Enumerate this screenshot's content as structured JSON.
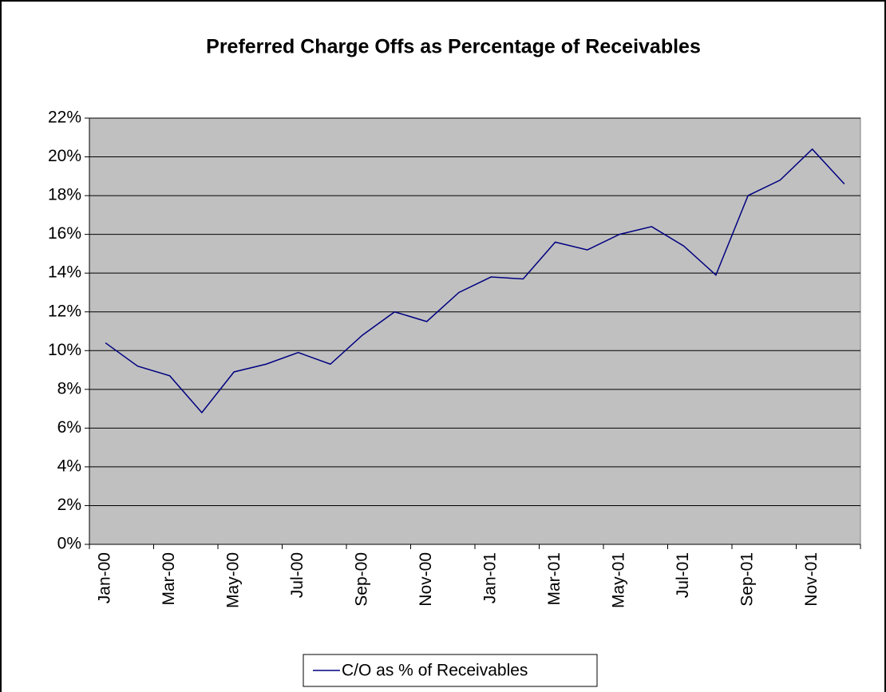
{
  "chart_data": {
    "type": "line",
    "title": "Preferred Charge Offs as Percentage of Receivables",
    "categories": [
      "Jan-00",
      null,
      "Mar-00",
      null,
      "May-00",
      null,
      "Jul-00",
      null,
      "Sep-00",
      null,
      "Nov-00",
      null,
      "Jan-01",
      null,
      "Mar-01",
      null,
      "May-01",
      null,
      "Jul-01",
      null,
      "Sep-01",
      null,
      "Nov-01",
      null
    ],
    "series": [
      {
        "name": "C/O as % of Receivables",
        "color": "#000080",
        "values": [
          10.4,
          9.2,
          8.7,
          6.8,
          8.9,
          9.3,
          9.9,
          9.3,
          10.8,
          12.0,
          11.5,
          13.0,
          13.8,
          13.7,
          15.6,
          15.2,
          16.0,
          16.4,
          15.4,
          13.9,
          18.0,
          18.8,
          20.4,
          18.6
        ]
      }
    ],
    "ylim": [
      0,
      22
    ],
    "yticks": [
      {
        "value": 0,
        "label": "0%"
      },
      {
        "value": 2,
        "label": "2%"
      },
      {
        "value": 4,
        "label": "4%"
      },
      {
        "value": 6,
        "label": "6%"
      },
      {
        "value": 8,
        "label": "8%"
      },
      {
        "value": 10,
        "label": "10%"
      },
      {
        "value": 12,
        "label": "12%"
      },
      {
        "value": 14,
        "label": "14%"
      },
      {
        "value": 16,
        "label": "16%"
      },
      {
        "value": 18,
        "label": "18%"
      },
      {
        "value": 20,
        "label": "20%"
      },
      {
        "value": 22,
        "label": "22%"
      }
    ],
    "grid": true,
    "plot_background": "#c0c0c0",
    "legend": "bottom"
  }
}
